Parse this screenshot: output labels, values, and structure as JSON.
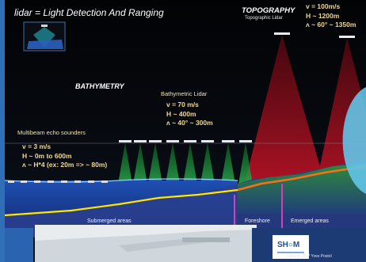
{
  "title": "lidar = Light Detection And Ranging",
  "topography": {
    "title": "TOPOGRAPHY",
    "subtitle": "Topographic Lidar",
    "speed": "v = 100m/s",
    "height": "H ~ 1200m",
    "swath": "ʌ ~ 60° ~ 1350m"
  },
  "bathymetry": {
    "title": "BATHYMETRY"
  },
  "bathymetric_lidar": {
    "title": "Bathymetric Lidar",
    "speed": "v = 70 m/s",
    "height": "H ~ 400m",
    "swath": "ʌ ~ 40° ~ 300m"
  },
  "multibeam": {
    "title": "Multibeam echo sounders",
    "speed": "v = 3 m/s",
    "depth": "H ~ 0m to 600m",
    "swath": "ʌ ~ H*4 (ex: 20m => ~ 80m)"
  },
  "zones": {
    "submerged": "Submerged areas",
    "foreshore": "Foreshore",
    "emerged": "Emerged areas"
  },
  "logo": {
    "text": "SH○M"
  },
  "credit": "©Shom 2017 Yves Postol",
  "colors": {
    "topo_beam": "#c8102e",
    "lidar_beam": "#1fa84a",
    "sonar_beam": "#9aa7ad",
    "sea": "#1d3f9c",
    "coastline": "#ffe500",
    "foreshore_marker": "#d63fb6",
    "emerged_marker": "#a8e04a"
  }
}
